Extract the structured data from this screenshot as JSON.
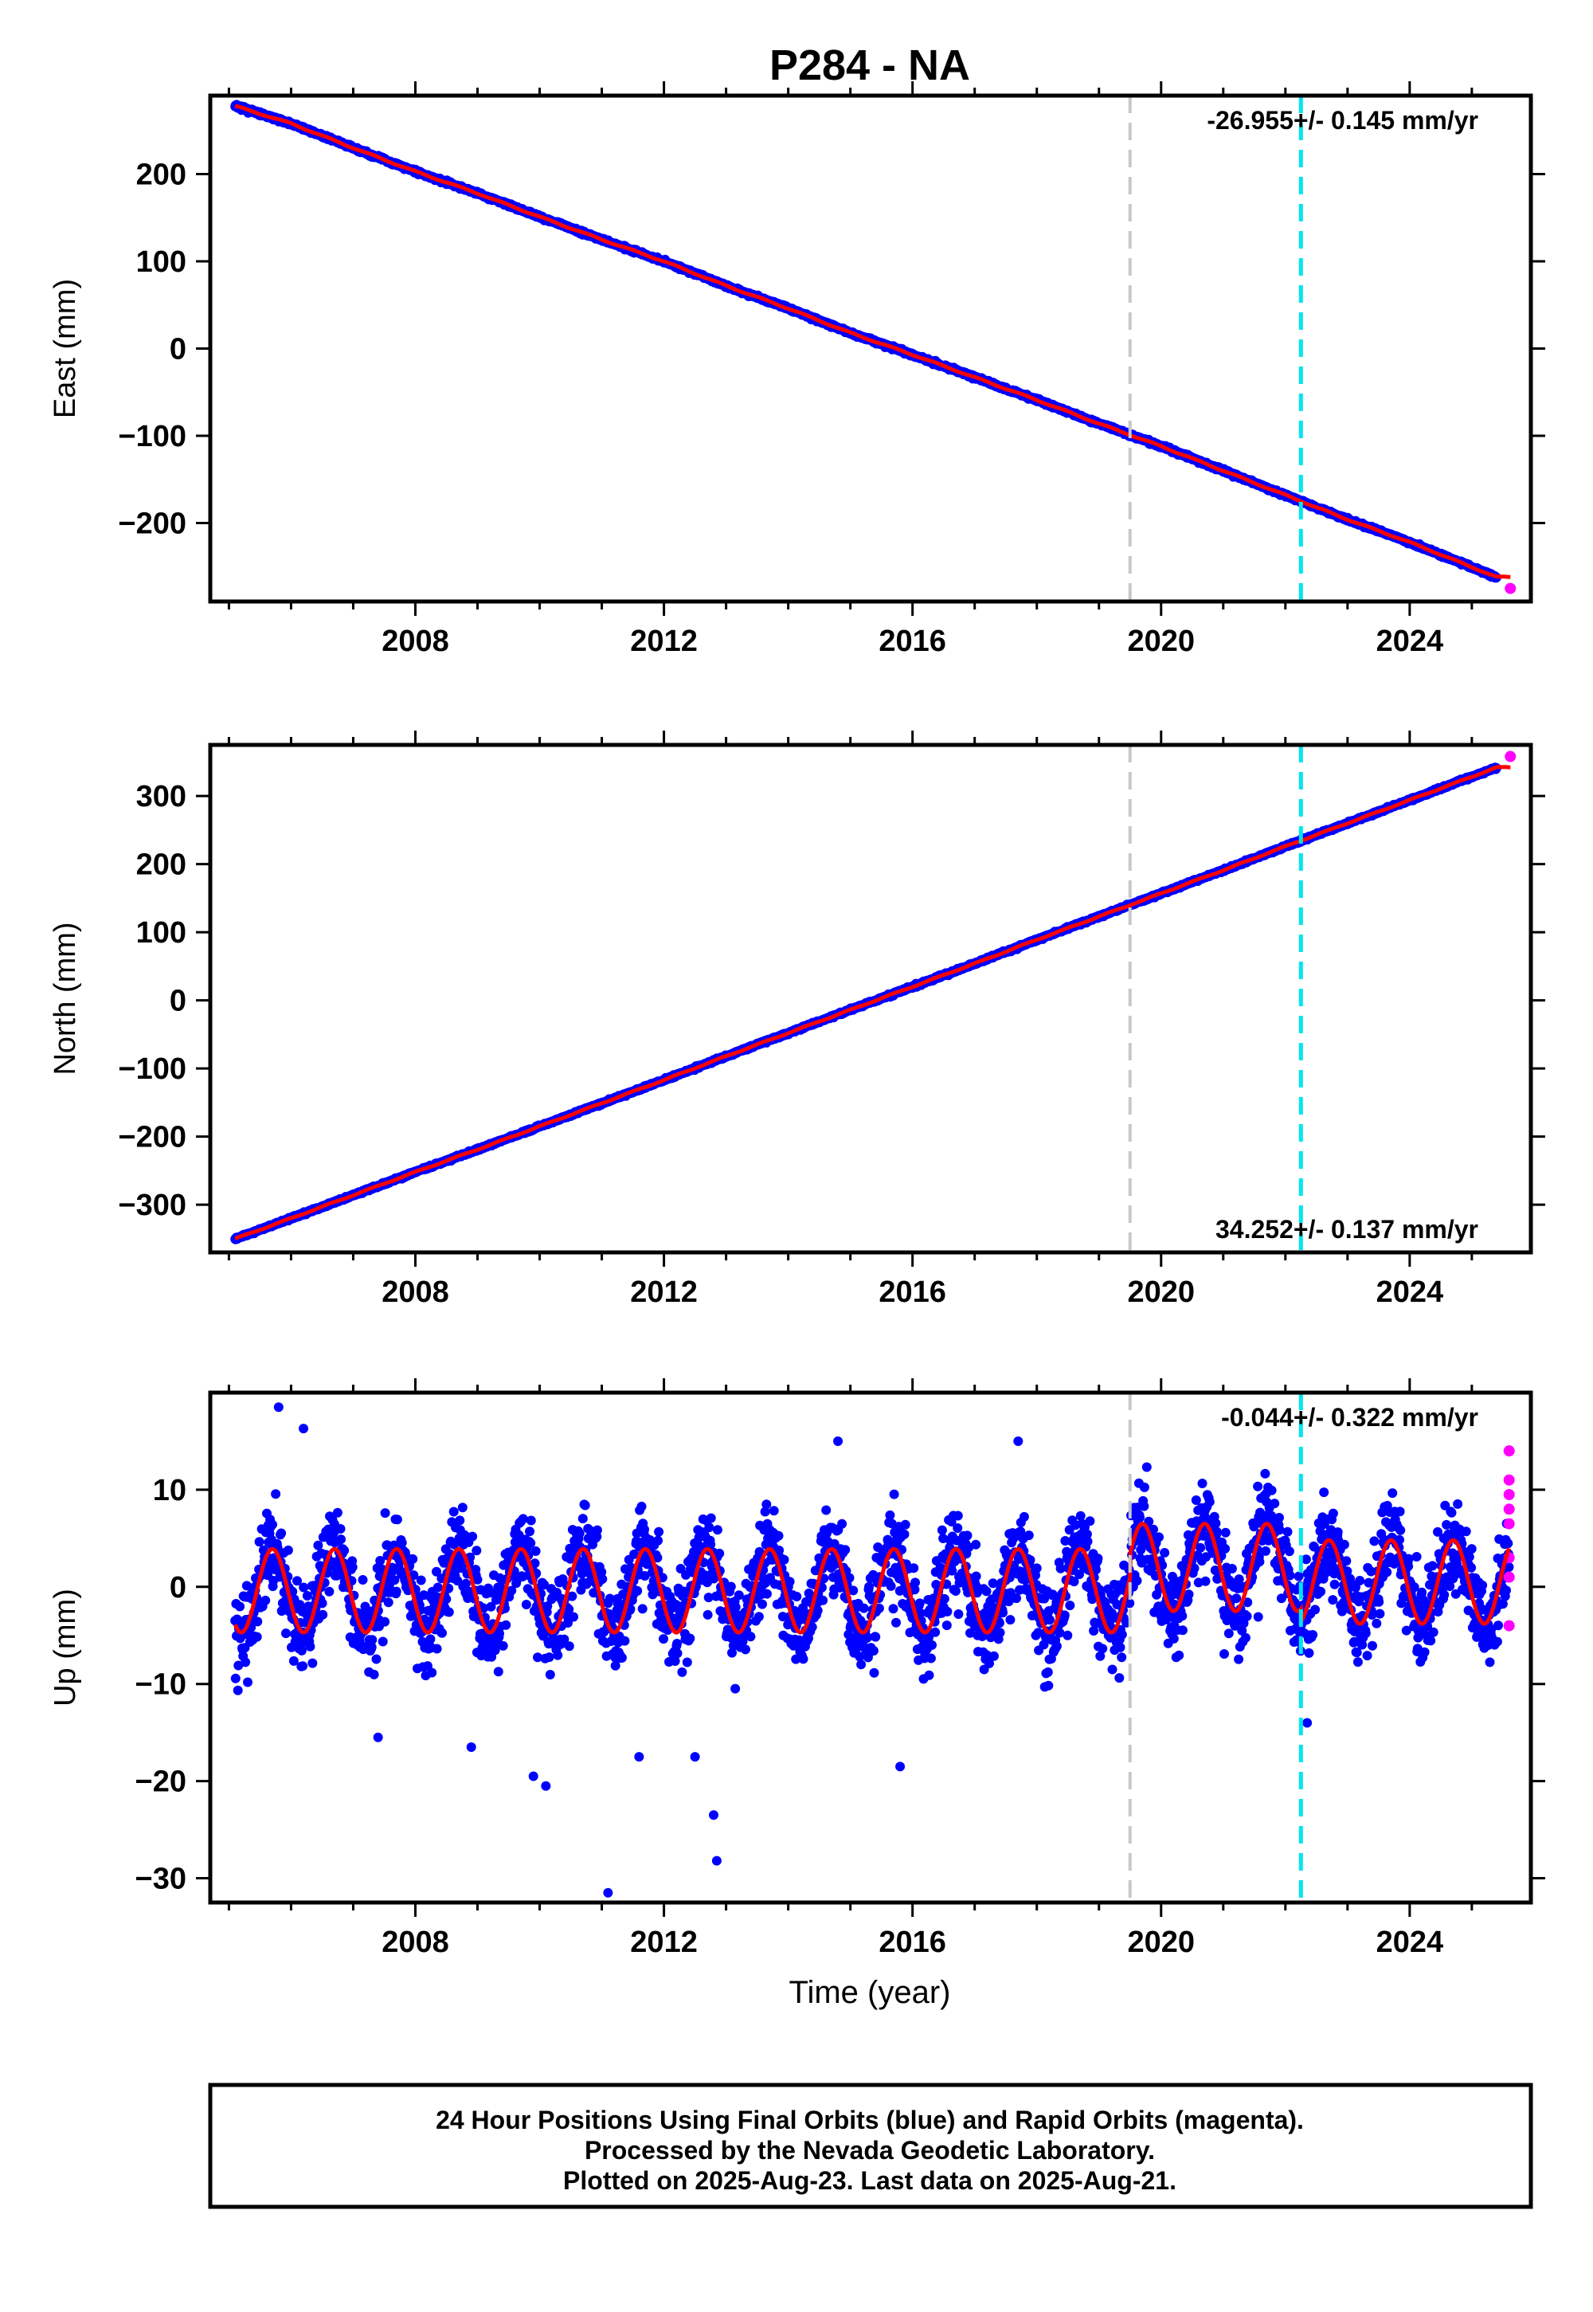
{
  "colors": {
    "final_orbits": "#0000ff",
    "rapid_orbits": "#ff00ff",
    "model_fit": "#ff0000",
    "equipment_change_line": "#c8c8c8",
    "event_line": "#00e5ee"
  },
  "chart_data": {
    "title": "P284 - NA",
    "shared_x": {
      "label": "Time (year)",
      "range": [
        2004.7,
        2025.95
      ],
      "ticks": [
        2008,
        2012,
        2016,
        2020,
        2024
      ],
      "tick_labels": [
        "2008",
        "2012",
        "2016",
        "2020",
        "2024"
      ]
    },
    "reference_lines": [
      {
        "x": 2019.5,
        "style": "dashed",
        "color": "gray"
      },
      {
        "x": 2022.25,
        "style": "dashed",
        "color": "cyan"
      }
    ],
    "panels": [
      {
        "type": "scatter",
        "ylabel": "East (mm)",
        "ylim": [
          -290,
          290
        ],
        "yticks": [
          -200,
          -100,
          0,
          100,
          200
        ],
        "ytick_labels": [
          "−200",
          "−100",
          "0",
          "100",
          "200"
        ],
        "velocity_label": "-26.955+/- 0.145 mm/yr",
        "velocity_label_position": "top-right",
        "series": [
          {
            "name": "Final Orbits",
            "color": "blue",
            "x": [
              2005.1,
              2006.0,
              2007.0,
              2008.0,
              2009.0,
              2010.0,
              2011.0,
              2012.0,
              2013.0,
              2014.0,
              2015.0,
              2016.0,
              2017.0,
              2018.0,
              2019.0,
              2020.0,
              2021.0,
              2022.0,
              2023.0,
              2024.0,
              2025.4
            ],
            "y": [
              278,
              258,
              230,
              203,
              178,
              151,
              125,
              100,
              72,
              46,
              18,
              -7,
              -33,
              -59,
              -86,
              -112,
              -140,
              -168,
              -196,
              -222,
              -262
            ]
          },
          {
            "name": "Rapid Orbits",
            "color": "magenta",
            "x": [
              2025.62
            ],
            "y": [
              -275
            ]
          }
        ],
        "fit": {
          "x0": 2005.1,
          "y0": 278,
          "x1": 2025.62,
          "y1": -275
        }
      },
      {
        "type": "scatter",
        "ylabel": "North (mm)",
        "ylim": [
          -370,
          375
        ],
        "yticks": [
          -300,
          -200,
          -100,
          0,
          100,
          200,
          300
        ],
        "ytick_labels": [
          "−300",
          "−200",
          "−100",
          "0",
          "100",
          "200",
          "300"
        ],
        "velocity_label": "34.252+/- 0.137 mm/yr",
        "velocity_label_position": "bottom-right",
        "series": [
          {
            "name": "Final Orbits",
            "color": "blue",
            "x": [
              2005.1,
              2006.0,
              2007.0,
              2008.0,
              2009.0,
              2010.0,
              2011.0,
              2012.0,
              2013.0,
              2014.0,
              2015.0,
              2016.0,
              2017.0,
              2018.0,
              2019.0,
              2020.0,
              2021.0,
              2022.0,
              2023.0,
              2024.0,
              2025.4
            ],
            "y": [
              -350,
              -320,
              -286,
              -252,
              -219,
              -185,
              -151,
              -117,
              -82,
              -48,
              -14,
              20,
              54,
              89,
              123,
              157,
              191,
              226,
              260,
              294,
              342
            ]
          },
          {
            "name": "Rapid Orbits",
            "color": "magenta",
            "x": [
              2025.62
            ],
            "y": [
              358
            ]
          }
        ],
        "fit": {
          "x0": 2005.1,
          "y0": -350,
          "x1": 2025.62,
          "y1": 358
        }
      },
      {
        "type": "scatter",
        "ylabel": "Up (mm)",
        "ylim": [
          -32.5,
          20
        ],
        "yticks": [
          -30,
          -20,
          -10,
          0,
          10
        ],
        "ytick_labels": [
          "−30",
          "−20",
          "−10",
          "0",
          "10"
        ],
        "velocity_label": "-0.044+/- 0.322 mm/yr",
        "velocity_label_position": "top-right",
        "seasonal": {
          "amplitude_mm": [
            4.3,
            4.5,
            4.3
          ],
          "break_years": [
            2019.5,
            2022.25
          ],
          "offsets_mm": [
            -0.4,
            2.0,
            0.5
          ],
          "period_years": 1.0,
          "spread_mm": 4.5
        },
        "series": [
          {
            "name": "Final Orbits",
            "color": "blue",
            "x": [
              2005.8,
              2006.2,
              2007.4,
              2008.9,
              2009.9,
              2010.1,
              2011.1,
              2011.6,
              2012.5,
              2012.8,
              2012.85,
              2014.8,
              2015.8,
              2017.7,
              2022.35
            ],
            "y": [
              18.5,
              16.3,
              -15.5,
              -16.5,
              -19.5,
              -20.5,
              -31.5,
              -17.5,
              -17.5,
              -23.5,
              -28.2,
              15.0,
              -18.5,
              15.0,
              -14.0
            ]
          },
          {
            "name": "Rapid Orbits",
            "color": "magenta",
            "x": [
              2025.6,
              2025.6,
              2025.6,
              2025.6,
              2025.6,
              2025.6,
              2025.6,
              2025.6
            ],
            "y": [
              14,
              11,
              9.5,
              8,
              6.5,
              3,
              1,
              -4
            ]
          }
        ]
      }
    ]
  },
  "footer": {
    "line1": "24 Hour Positions Using Final Orbits (blue) and Rapid Orbits (magenta).",
    "line2": "Processed by the Nevada Geodetic Laboratory.",
    "line3": "Plotted on 2025-Aug-23. Last data on 2025-Aug-21."
  }
}
